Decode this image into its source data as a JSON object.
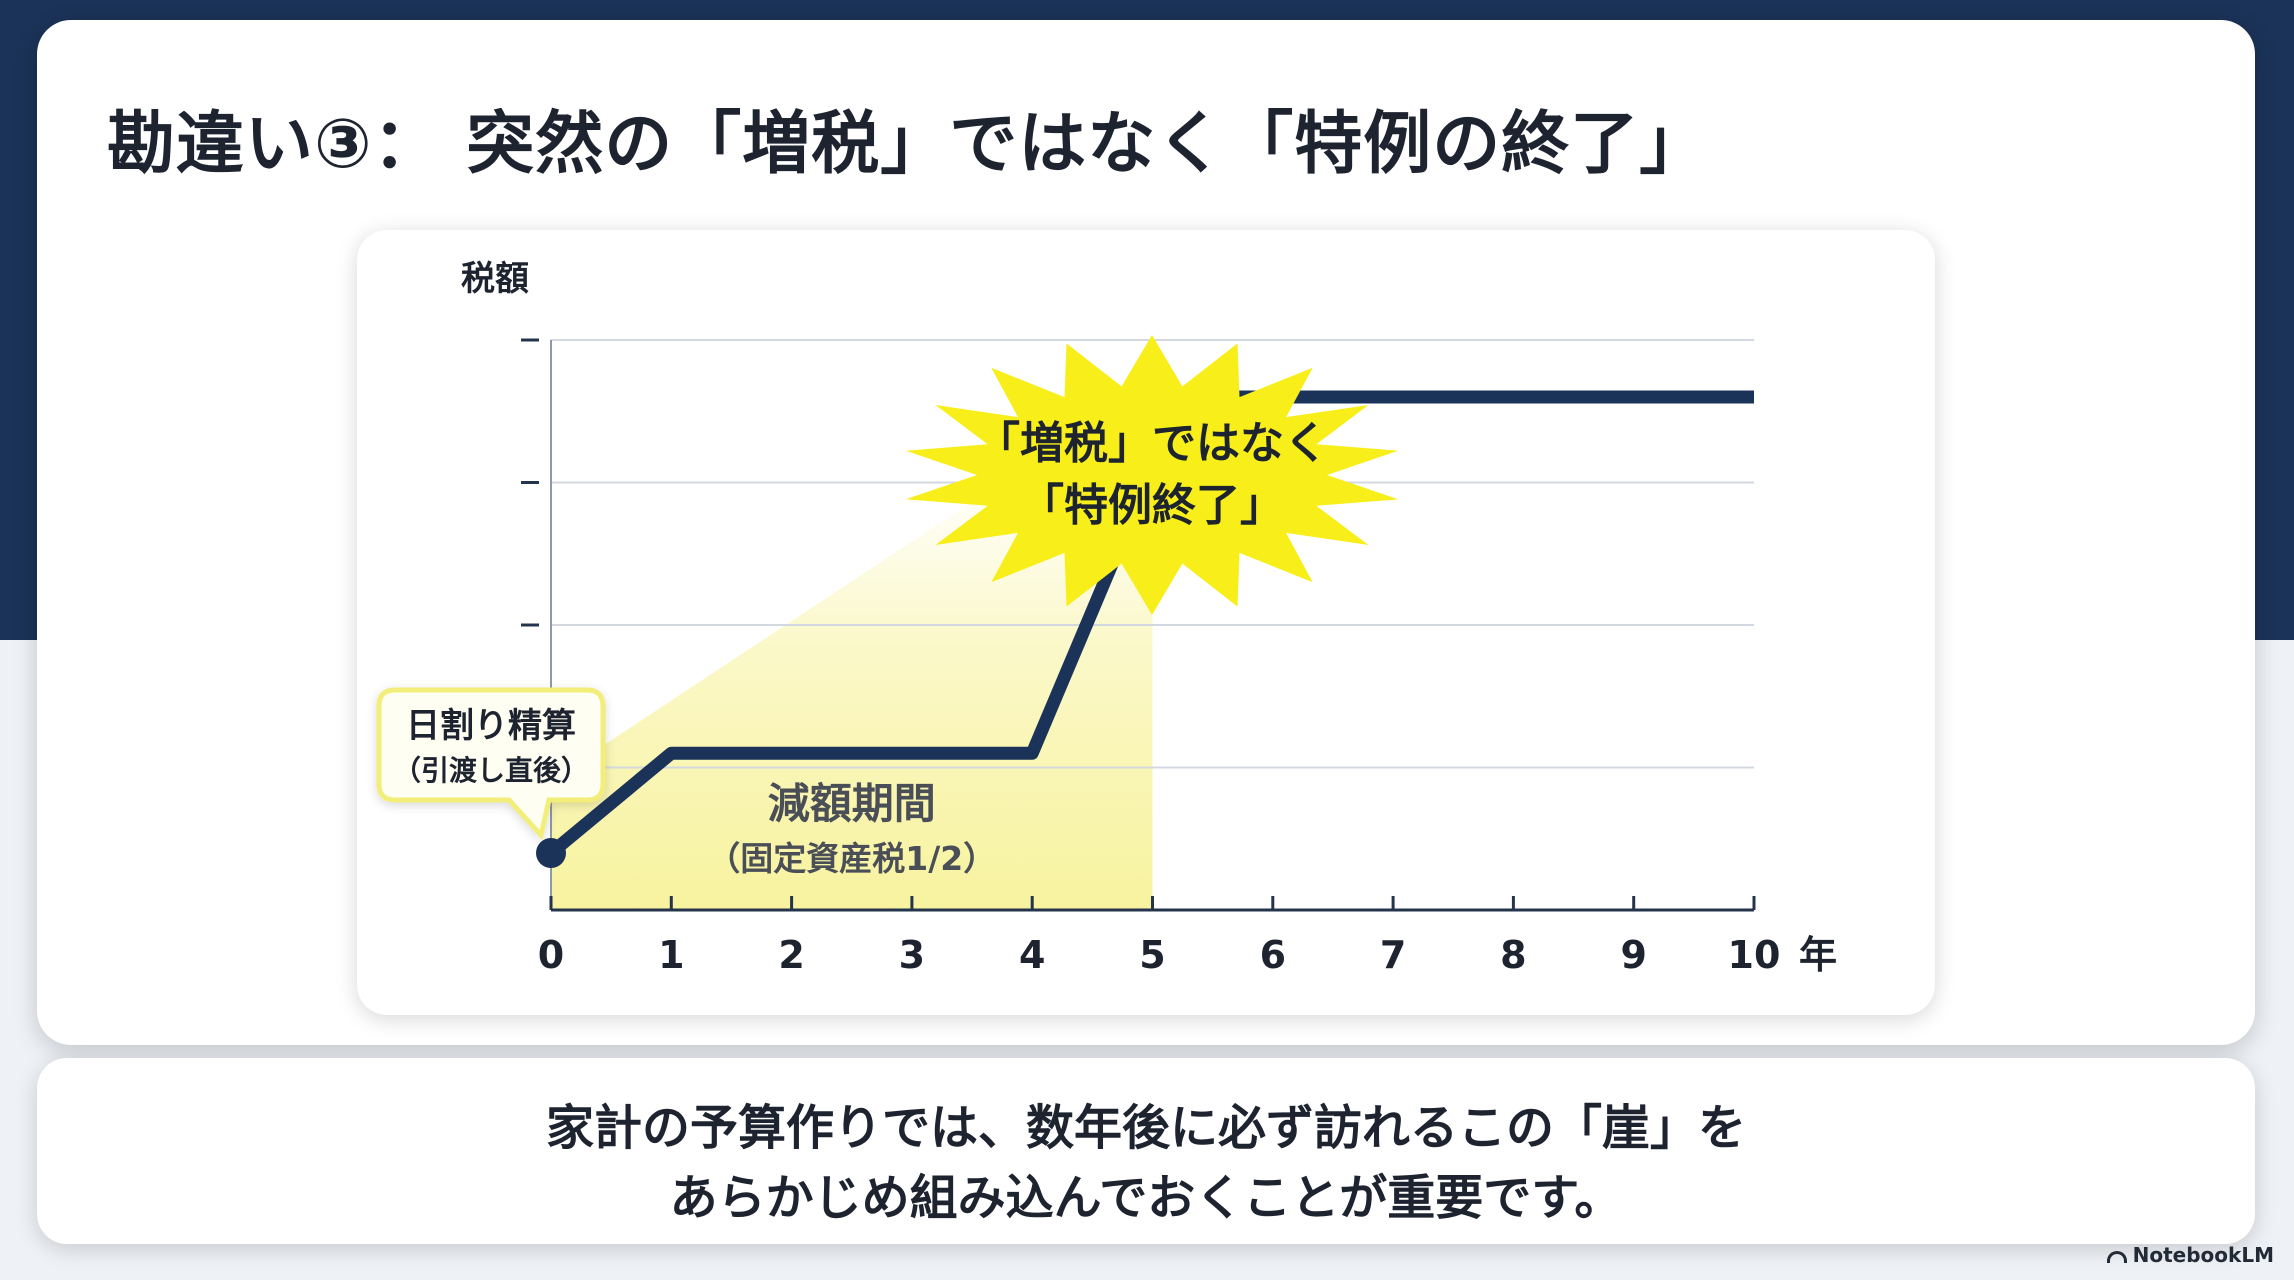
{
  "slide": {
    "title": "勘違い③： 突然の「増税」ではなく「特例の終了」"
  },
  "message": {
    "line1": "家計の予算作りでは、数年後に必ず訪れるこの「崖」を",
    "line2": "あらかじめ組み込んでおくことが重要です。"
  },
  "brand": {
    "name": "NotebookLM",
    "icon": "notebooklm-logo-icon"
  },
  "chart_data": {
    "type": "line",
    "ylabel": "税額",
    "xlabel": "年",
    "x_ticks": [
      "0",
      "1",
      "2",
      "3",
      "4",
      "5",
      "6",
      "7",
      "8",
      "9",
      "10"
    ],
    "xlim": [
      0,
      10
    ],
    "ylim": [
      0,
      4
    ],
    "y_tick_count": 4,
    "grid": true,
    "series": [
      {
        "points": [
          {
            "x": 0,
            "y": 0.4
          },
          {
            "x": 1,
            "y": 1.1
          },
          {
            "x": 4,
            "y": 1.1
          },
          {
            "x": 5,
            "y": 3.1
          },
          {
            "x": 5.6,
            "y": 3.6
          },
          {
            "x": 10,
            "y": 3.6
          }
        ],
        "color": "#1b3358"
      }
    ],
    "highlight": {
      "x_start": 0,
      "x_end": 5,
      "color": "#f7f29a",
      "label": "減額期間",
      "sublabel": "（固定資産税1/2）"
    },
    "annotations": {
      "start_callout": {
        "line1": "日割り精算",
        "line2": "（引渡し直後）"
      },
      "starburst": {
        "line1": "「増税」ではなく",
        "line2": "「特例終了」",
        "color": "#f7ee1a"
      }
    }
  }
}
